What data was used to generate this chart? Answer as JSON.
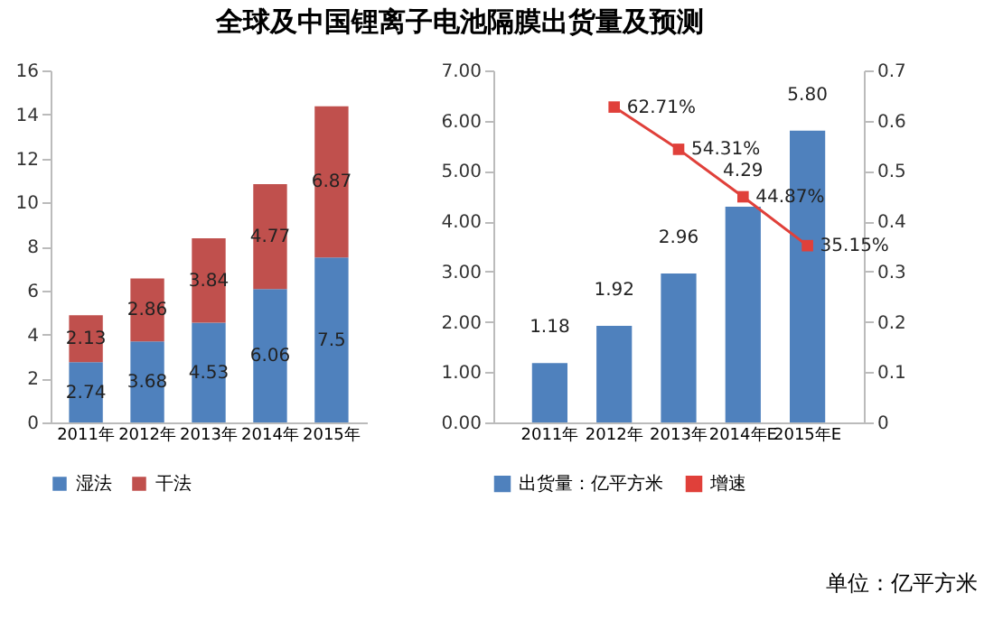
{
  "chart_data": [
    {
      "type": "bar",
      "title": "全球及中国锂离子电池隔膜出货量及预测",
      "stacked": true,
      "categories": [
        "2011年",
        "2012年",
        "2013年",
        "2014年",
        "2015年"
      ],
      "series": [
        {
          "name": "湿法",
          "color": "#4f81bd",
          "values": [
            2.74,
            3.68,
            4.53,
            6.06,
            7.5
          ]
        },
        {
          "name": "干法",
          "color": "#c0504d",
          "values": [
            2.13,
            2.86,
            3.84,
            4.77,
            6.87
          ]
        }
      ],
      "ylim": [
        0,
        16
      ],
      "yticks": [
        0,
        2,
        4,
        6,
        8,
        10,
        12,
        14,
        16
      ],
      "data_labels": true,
      "legend": "bottom",
      "grid": false
    },
    {
      "type": "bar",
      "categories": [
        "2011年",
        "2012年",
        "2013年",
        "2014年E",
        "2015年E"
      ],
      "series": [
        {
          "name": "出货量：亿平方米",
          "color": "#4f81bd",
          "values": [
            1.18,
            1.92,
            2.96,
            4.29,
            5.8
          ],
          "value_labels": [
            "1.18",
            "1.92",
            "2.96",
            "4.29",
            "5.80"
          ]
        },
        {
          "name": "增速",
          "type": "line",
          "axis": "y2",
          "color": "#e0403a",
          "marker": "square",
          "values": [
            null,
            0.6271,
            0.5431,
            0.4487,
            0.3515
          ],
          "value_labels": [
            null,
            "62.71%",
            "54.31%",
            "44.87%",
            "35.15%"
          ]
        }
      ],
      "ylim": [
        0,
        7
      ],
      "yticks": [
        {
          "value": 0,
          "label": "0.00"
        },
        {
          "value": 1,
          "label": "1.00"
        },
        {
          "value": 2,
          "label": "2.00"
        },
        {
          "value": 3,
          "label": "3.00"
        },
        {
          "value": 4,
          "label": "4.00"
        },
        {
          "value": 5,
          "label": "5.00"
        },
        {
          "value": 6,
          "label": "6.00"
        },
        {
          "value": 7,
          "label": "7.00"
        }
      ],
      "y2lim": [
        0,
        0.7
      ],
      "y2ticks": [
        0,
        0.1,
        0.2,
        0.3,
        0.4,
        0.5,
        0.6,
        0.7
      ],
      "legend": "bottom",
      "grid": false,
      "annotations": [
        "单位：亿平方米"
      ]
    }
  ]
}
